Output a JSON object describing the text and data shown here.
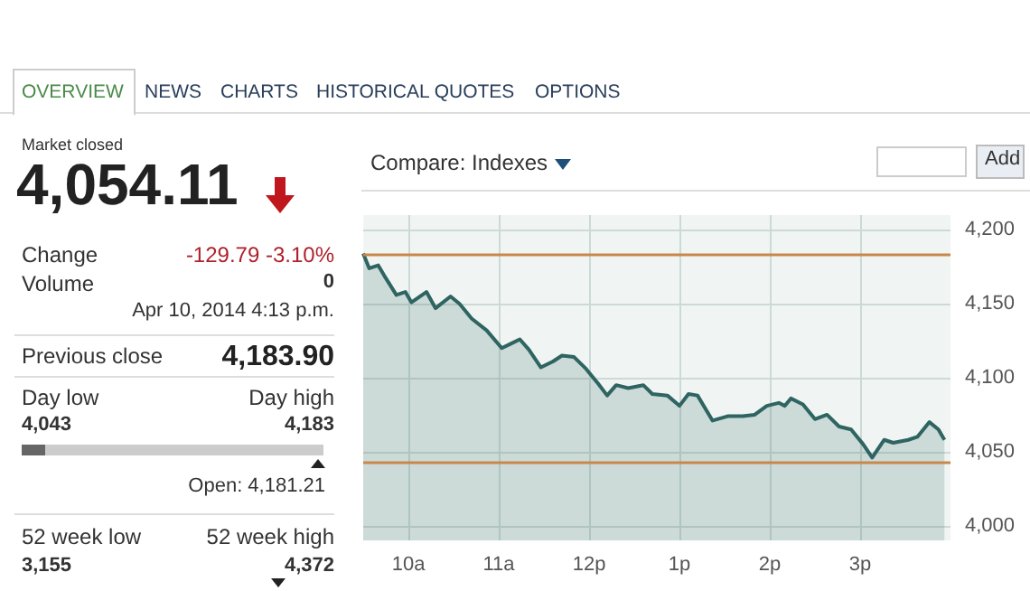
{
  "chart_data": {
    "type": "area",
    "x": [
      "2014-04-10T09:30",
      "2014-04-10T09:34",
      "2014-04-10T09:40",
      "2014-04-10T09:44",
      "2014-04-10T09:52",
      "2014-04-10T09:58",
      "2014-04-10T10:02",
      "2014-04-10T10:12",
      "2014-04-10T10:18",
      "2014-04-10T10:28",
      "2014-04-10T10:34",
      "2014-04-10T10:42",
      "2014-04-10T10:52",
      "2014-04-10T11:02",
      "2014-04-10T11:08",
      "2014-04-10T11:14",
      "2014-04-10T11:20",
      "2014-04-10T11:28",
      "2014-04-10T11:36",
      "2014-04-10T11:42",
      "2014-04-10T11:50",
      "2014-04-10T11:58",
      "2014-04-10T12:06",
      "2014-04-10T12:12",
      "2014-04-10T12:18",
      "2014-04-10T12:26",
      "2014-04-10T12:36",
      "2014-04-10T12:42",
      "2014-04-10T12:52",
      "2014-04-10T13:00",
      "2014-04-10T13:06",
      "2014-04-10T13:12",
      "2014-04-10T13:22",
      "2014-04-10T13:32",
      "2014-04-10T13:42",
      "2014-04-10T13:50",
      "2014-04-10T13:58",
      "2014-04-10T14:06",
      "2014-04-10T14:10",
      "2014-04-10T14:14",
      "2014-04-10T14:22",
      "2014-04-10T14:30",
      "2014-04-10T14:38",
      "2014-04-10T14:46",
      "2014-04-10T14:54",
      "2014-04-10T15:02",
      "2014-04-10T15:08",
      "2014-04-10T15:16",
      "2014-04-10T15:22",
      "2014-04-10T15:32",
      "2014-04-10T15:38",
      "2014-04-10T15:46",
      "2014-04-10T15:52",
      "2014-04-10T15:56"
    ],
    "series": [
      {
        "color": "#2e6461",
        "values": [
          4184,
          4174,
          4176,
          4169,
          4156,
          4158,
          4151,
          4158,
          4147,
          4155,
          4150,
          4140,
          4132,
          4120,
          4123,
          4126,
          4119,
          4107,
          4111,
          4115,
          4114,
          4106,
          4096,
          4088,
          4095,
          4093,
          4095,
          4089,
          4088,
          4081,
          4089,
          4088,
          4071,
          4074,
          4074,
          4075,
          4081,
          4083,
          4081,
          4086,
          4082,
          4072,
          4075,
          4067,
          4065,
          4055,
          4046,
          4058,
          4056,
          4058,
          4060,
          4070,
          4065,
          4058
        ]
      }
    ],
    "xlim": [
      "2014-04-10T09:30",
      "2014-04-10T16:00"
    ],
    "xticks": [
      {
        "value": "2014-04-10T10:00",
        "label": "10a"
      },
      {
        "value": "2014-04-10T11:00",
        "label": "11a"
      },
      {
        "value": "2014-04-10T12:00",
        "label": "12p"
      },
      {
        "value": "2014-04-10T13:00",
        "label": "1p"
      },
      {
        "value": "2014-04-10T14:00",
        "label": "2p"
      },
      {
        "value": "2014-04-10T15:00",
        "label": "3p"
      }
    ],
    "ylim": [
      3990,
      4210
    ],
    "yticks": [
      {
        "value": 4000,
        "label": "4,000"
      },
      {
        "value": 4050,
        "label": "4,050"
      },
      {
        "value": 4100,
        "label": "4,100"
      },
      {
        "value": 4150,
        "label": "4,150"
      },
      {
        "value": 4200,
        "label": "4,200"
      }
    ],
    "ref_lines": [
      {
        "axis": "y",
        "value": 4183.9,
        "color": "#c8884a"
      },
      {
        "axis": "y",
        "value": 4043,
        "color": "#c8884a"
      }
    ],
    "grid": true,
    "marker": "none",
    "annotations": [
      "OVERVIEW",
      "NEWS",
      "CHARTS",
      "HISTORICAL QUOTES",
      "OPTIONS",
      "Market closed",
      "4,054.11",
      "Change",
      "-129.79 -3.10%",
      "Volume",
      "0",
      "Apr 10, 2014 4:13 p.m.",
      "Previous close",
      "4,183.90",
      "Day low",
      "Day high",
      "4,043",
      "4,183",
      "Open: 4,181.21",
      "52 week low",
      "52 week high",
      "3,155",
      "4,372",
      "Compare: Indexes",
      "Add"
    ]
  }
}
